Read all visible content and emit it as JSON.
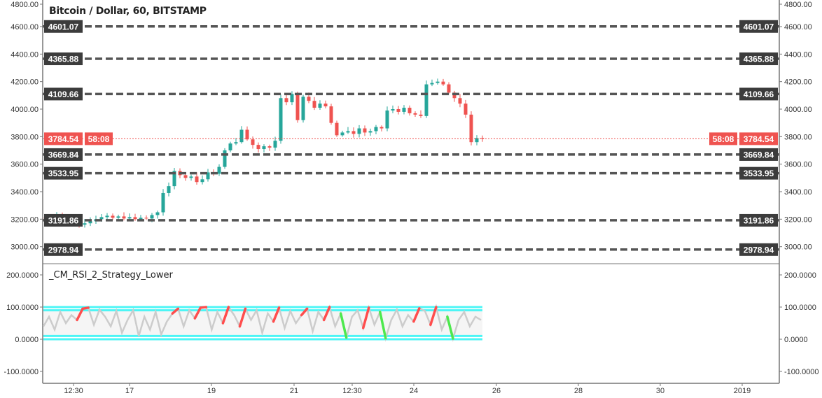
{
  "header": {
    "title": "Bitcoin / Dollar, 60, BITSTAMP"
  },
  "indicator": {
    "title": "_CM_RSI_2_Strategy_Lower"
  },
  "colors": {
    "up": "#26a69a",
    "down": "#ef5350",
    "level_line": "#555555",
    "label_bg": "#3c3c3c",
    "price_label_bg": "#ef5350",
    "rsi_line": "#cccccc",
    "rsi_band": "#4df5f5",
    "rsi_high": "#ff4d4d",
    "rsi_low": "#4de84d"
  },
  "chart_data": [
    {
      "type": "candlestick",
      "title": "Bitcoin / Dollar, 60, BITSTAMP",
      "ylim": [
        2900,
        4800
      ],
      "y_ticks": [
        "4800.00",
        "4600.00",
        "4400.00",
        "4200.00",
        "4000.00",
        "3800.00",
        "3600.00",
        "3400.00",
        "3200.00",
        "3000.00"
      ],
      "x_ticks": [
        "12:30",
        "17",
        "19",
        "21",
        "12:30",
        "24",
        "26",
        "28",
        "30",
        "2019"
      ],
      "closes": [
        3205,
        3195,
        3225,
        3215,
        3200,
        3175,
        3160,
        3170,
        3185,
        3200,
        3215,
        3225,
        3210,
        3220,
        3205,
        3215,
        3200,
        3210,
        3205,
        3230,
        3250,
        3390,
        3440,
        3550,
        3520,
        3500,
        3510,
        3470,
        3490,
        3540,
        3530,
        3580,
        3700,
        3750,
        3760,
        3850,
        3780,
        3740,
        3710,
        3730,
        3720,
        3770,
        4080,
        4050,
        4110,
        3920,
        4090,
        4060,
        4010,
        4040,
        4020,
        3900,
        3810,
        3830,
        3840,
        3820,
        3860,
        3830,
        3840,
        3870,
        3860,
        3990,
        4000,
        3980,
        4010,
        3970,
        3960,
        3950,
        4180,
        4190,
        4200,
        4180,
        4120,
        4080,
        4040,
        3960,
        3760,
        3790,
        3784.54
      ],
      "levels": [
        {
          "value": 4601.07,
          "label": "4601.07"
        },
        {
          "value": 4365.88,
          "label": "4365.88"
        },
        {
          "value": 4109.66,
          "label": "4109.66"
        },
        {
          "value": 3669.84,
          "label": "3669.84"
        },
        {
          "value": 3533.95,
          "label": "3533.95"
        },
        {
          "value": 3191.86,
          "label": "3191.86"
        },
        {
          "value": 2978.94,
          "label": "2978.94"
        }
      ],
      "last_price": {
        "value": 3784.54,
        "label": "3784.54",
        "countdown": "58:08"
      }
    },
    {
      "type": "line",
      "title": "_CM_RSI_2_Strategy_Lower",
      "ylim": [
        -130,
        230
      ],
      "y_ticks": [
        "200.0000",
        "100.0000",
        "0.0000",
        "-100.0000"
      ],
      "bands": [
        100,
        90,
        10,
        0
      ],
      "rsi": [
        40,
        70,
        30,
        85,
        50,
        75,
        60,
        95,
        98,
        45,
        92,
        70,
        40,
        88,
        20,
        60,
        90,
        10,
        70,
        30,
        85,
        15,
        55,
        80,
        95,
        40,
        90,
        65,
        98,
        100,
        30,
        85,
        50,
        100,
        75,
        40,
        95,
        60,
        90,
        20,
        80,
        55,
        98,
        35,
        88,
        50,
        75,
        95,
        25,
        85,
        60,
        100,
        40,
        80,
        5,
        70,
        90,
        35,
        98,
        45,
        85,
        3,
        60,
        92,
        40,
        75,
        55,
        96,
        88,
        45,
        100,
        30,
        70,
        2,
        60,
        85,
        40,
        70,
        60
      ]
    }
  ]
}
